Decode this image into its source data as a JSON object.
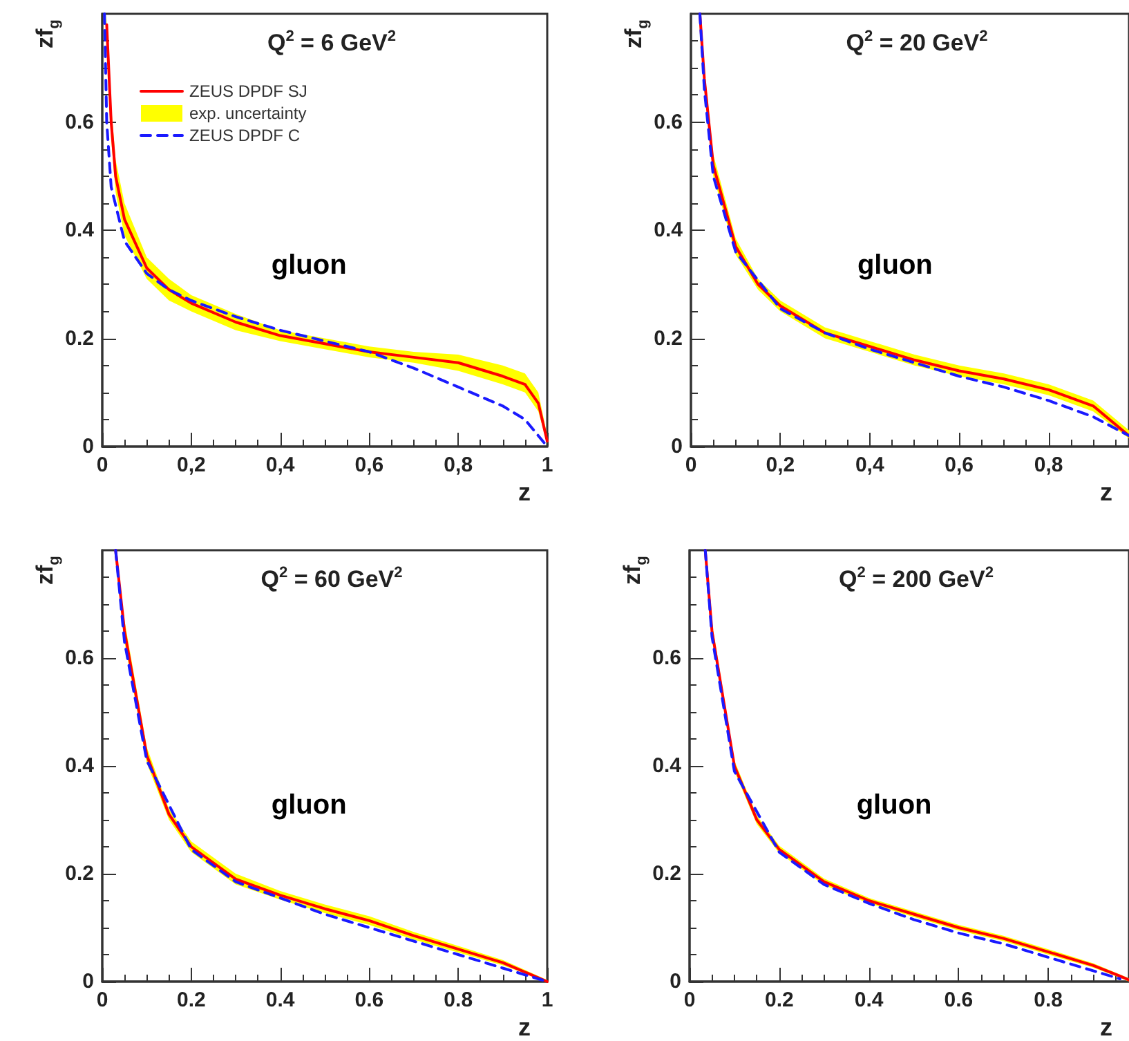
{
  "chart_data": [
    {
      "type": "line",
      "title": "Q$^{2}$ = 6 GeV$^{2}$",
      "xlabel": "z",
      "ylabel": "zf$_{g}$",
      "annotations": [
        "gluon"
      ],
      "xlim": [
        0,
        1
      ],
      "xticks": [
        0,
        {
          "value": 0.2,
          "label": "0,2"
        },
        {
          "value": 0.4,
          "label": "0,4"
        },
        {
          "value": 0.6,
          "label": "0,6"
        },
        {
          "value": 0.8,
          "label": "0,8"
        },
        1
      ],
      "ylim": [
        0,
        0.8
      ],
      "yticks": [
        0,
        0.2,
        0.4,
        0.6
      ],
      "grid": false,
      "legend": "top left",
      "marker": "none",
      "series": [
        {
          "name": "ZEUS DPDF SJ",
          "color": "#ff0000",
          "line_style": "solid",
          "x": [
            0.01,
            0.02,
            0.03,
            0.05,
            0.1,
            0.15,
            0.2,
            0.3,
            0.4,
            0.5,
            0.6,
            0.7,
            0.8,
            0.9,
            0.95,
            0.98,
            1.0
          ],
          "values": [
            0.78,
            0.6,
            0.5,
            0.42,
            0.33,
            0.29,
            0.265,
            0.23,
            0.205,
            0.19,
            0.175,
            0.165,
            0.155,
            0.13,
            0.115,
            0.08,
            0.01
          ],
          "lower": [
            0.74,
            0.57,
            0.47,
            0.39,
            0.31,
            0.27,
            0.25,
            0.215,
            0.195,
            0.18,
            0.165,
            0.155,
            0.14,
            0.115,
            0.1,
            0.065,
            0.005
          ],
          "upper": [
            0.8,
            0.63,
            0.53,
            0.45,
            0.35,
            0.31,
            0.28,
            0.245,
            0.215,
            0.2,
            0.185,
            0.175,
            0.17,
            0.15,
            0.135,
            0.1,
            0.02
          ]
        },
        {
          "name": "exp. uncertainty",
          "type": "area",
          "color": "#ffff00"
        },
        {
          "name": "ZEUS DPDF C",
          "color": "#1a1aff",
          "line_style": "dashed",
          "x": [
            0.005,
            0.01,
            0.02,
            0.05,
            0.1,
            0.15,
            0.2,
            0.3,
            0.4,
            0.5,
            0.6,
            0.7,
            0.8,
            0.9,
            0.95,
            1.0
          ],
          "values": [
            0.8,
            0.6,
            0.48,
            0.38,
            0.32,
            0.29,
            0.27,
            0.24,
            0.215,
            0.195,
            0.175,
            0.145,
            0.11,
            0.075,
            0.05,
            0
          ]
        }
      ]
    },
    {
      "type": "line",
      "title": "Q$^{2}$ = 20 GeV$^{2}$",
      "xlabel": "z",
      "ylabel": "zf$_{g}$",
      "annotations": [
        "gluon"
      ],
      "xlim": [
        0,
        0.98
      ],
      "xticks": [
        0,
        {
          "value": 0.2,
          "label": "0,2"
        },
        {
          "value": 0.4,
          "label": "0,4"
        },
        {
          "value": 0.6,
          "label": "0,6"
        },
        {
          "value": 0.8,
          "label": "0,8"
        }
      ],
      "ylim": [
        0,
        0.8
      ],
      "yticks": [
        0,
        0.2,
        0.4,
        0.6
      ],
      "grid": false,
      "marker": "none",
      "series": [
        {
          "color": "#ff0000",
          "line_style": "solid",
          "x": [
            0.02,
            0.03,
            0.05,
            0.1,
            0.15,
            0.2,
            0.3,
            0.4,
            0.5,
            0.6,
            0.7,
            0.8,
            0.9,
            0.98
          ],
          "values": [
            0.8,
            0.68,
            0.52,
            0.37,
            0.3,
            0.26,
            0.21,
            0.185,
            0.16,
            0.14,
            0.125,
            0.105,
            0.075,
            0.02
          ],
          "lower": [
            0.77,
            0.66,
            0.5,
            0.355,
            0.29,
            0.25,
            0.2,
            0.175,
            0.15,
            0.13,
            0.115,
            0.095,
            0.065,
            0.015
          ],
          "upper": [
            0.8,
            0.7,
            0.54,
            0.385,
            0.31,
            0.27,
            0.22,
            0.195,
            0.17,
            0.15,
            0.135,
            0.115,
            0.085,
            0.03
          ]
        },
        {
          "type": "area",
          "color": "#ffff00"
        },
        {
          "color": "#1a1aff",
          "line_style": "dashed",
          "x": [
            0.02,
            0.03,
            0.05,
            0.1,
            0.2,
            0.3,
            0.4,
            0.5,
            0.6,
            0.7,
            0.8,
            0.9,
            0.98
          ],
          "values": [
            0.8,
            0.66,
            0.5,
            0.36,
            0.255,
            0.21,
            0.18,
            0.155,
            0.13,
            0.11,
            0.085,
            0.055,
            0.02
          ]
        }
      ]
    },
    {
      "type": "line",
      "title": "Q$^{2}$ = 60 GeV$^{2}$",
      "xlabel": "z",
      "ylabel": "zf$_{g}$",
      "annotations": [
        "gluon"
      ],
      "xlim": [
        0,
        1
      ],
      "xticks": [
        0,
        0.2,
        0.4,
        0.6,
        0.8,
        1
      ],
      "ylim": [
        0,
        0.8
      ],
      "yticks": [
        0,
        0.2,
        0.4,
        0.6
      ],
      "grid": false,
      "marker": "none",
      "series": [
        {
          "color": "#ff0000",
          "line_style": "solid",
          "x": [
            0.03,
            0.05,
            0.1,
            0.15,
            0.2,
            0.3,
            0.4,
            0.5,
            0.6,
            0.7,
            0.8,
            0.9,
            1.0
          ],
          "values": [
            0.8,
            0.65,
            0.42,
            0.31,
            0.25,
            0.19,
            0.16,
            0.135,
            0.113,
            0.085,
            0.06,
            0.035,
            0
          ],
          "lower": [
            0.78,
            0.63,
            0.405,
            0.3,
            0.24,
            0.18,
            0.152,
            0.127,
            0.105,
            0.078,
            0.054,
            0.03,
            0
          ],
          "upper": [
            0.8,
            0.67,
            0.435,
            0.32,
            0.26,
            0.2,
            0.168,
            0.143,
            0.121,
            0.092,
            0.066,
            0.04,
            0.003
          ]
        },
        {
          "type": "area",
          "color": "#ffff00"
        },
        {
          "color": "#1a1aff",
          "line_style": "dashed",
          "x": [
            0.03,
            0.05,
            0.1,
            0.2,
            0.3,
            0.4,
            0.5,
            0.6,
            0.7,
            0.8,
            0.9,
            1.0
          ],
          "values": [
            0.8,
            0.63,
            0.41,
            0.245,
            0.185,
            0.155,
            0.125,
            0.1,
            0.075,
            0.05,
            0.025,
            0
          ]
        }
      ]
    },
    {
      "type": "line",
      "title": "Q$^{2}$ = 200 GeV$^{2}$",
      "xlabel": "z",
      "ylabel": "zf$_{g}$",
      "annotations": [
        "gluon"
      ],
      "xlim": [
        0,
        0.98
      ],
      "xticks": [
        0,
        0.2,
        0.4,
        0.6,
        0.8
      ],
      "ylim": [
        0,
        0.8
      ],
      "yticks": [
        0,
        0.2,
        0.4,
        0.6
      ],
      "grid": false,
      "marker": "none",
      "series": [
        {
          "color": "#ff0000",
          "line_style": "solid",
          "x": [
            0.035,
            0.05,
            0.1,
            0.15,
            0.2,
            0.3,
            0.4,
            0.5,
            0.6,
            0.7,
            0.8,
            0.9,
            0.96,
            0.98
          ],
          "values": [
            0.8,
            0.65,
            0.4,
            0.3,
            0.245,
            0.185,
            0.15,
            0.125,
            0.1,
            0.08,
            0.055,
            0.03,
            0.01,
            0.003
          ],
          "lower": [
            0.78,
            0.635,
            0.39,
            0.292,
            0.238,
            0.179,
            0.145,
            0.12,
            0.095,
            0.075,
            0.05,
            0.026,
            0.007,
            0
          ],
          "upper": [
            0.8,
            0.665,
            0.41,
            0.308,
            0.252,
            0.191,
            0.155,
            0.13,
            0.105,
            0.085,
            0.06,
            0.034,
            0.013,
            0.006
          ]
        },
        {
          "type": "area",
          "color": "#ffff00"
        },
        {
          "color": "#1a1aff",
          "line_style": "dashed",
          "x": [
            0.035,
            0.05,
            0.1,
            0.2,
            0.3,
            0.4,
            0.5,
            0.6,
            0.7,
            0.8,
            0.9,
            0.96
          ],
          "values": [
            0.8,
            0.64,
            0.39,
            0.24,
            0.18,
            0.145,
            0.115,
            0.09,
            0.07,
            0.045,
            0.02,
            0.005
          ]
        }
      ]
    }
  ]
}
